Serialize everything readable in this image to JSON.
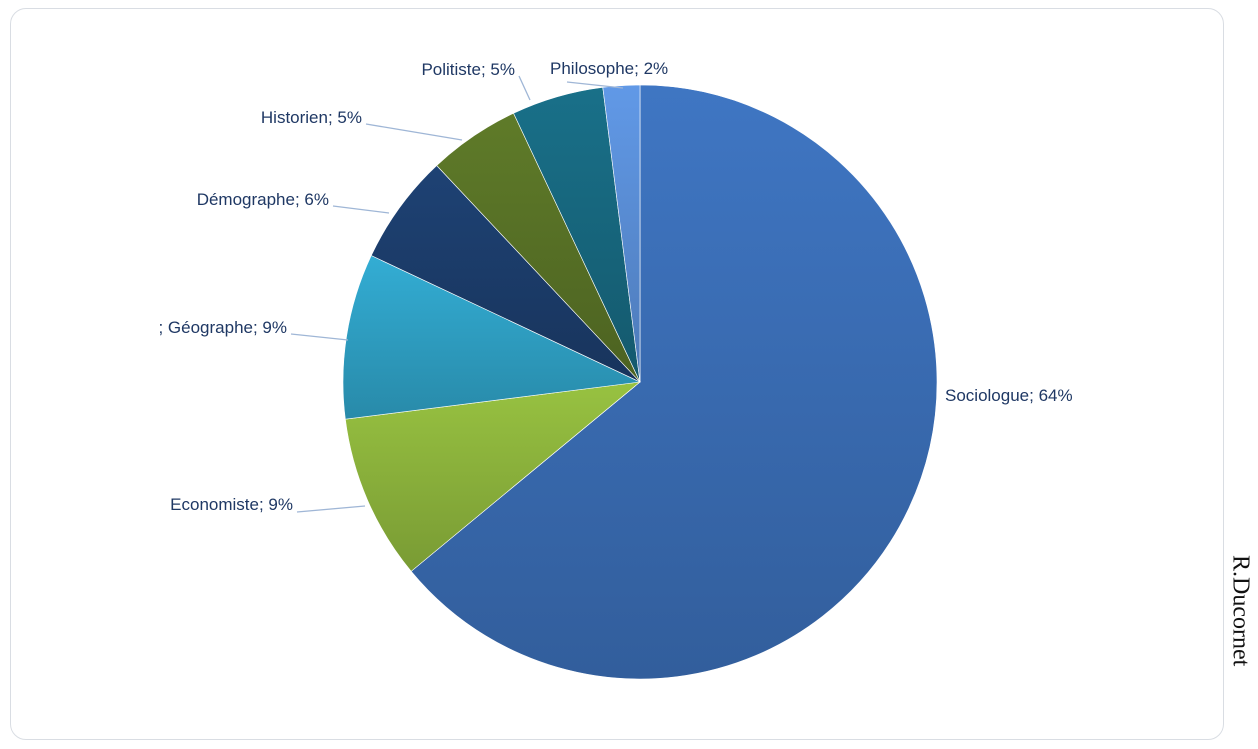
{
  "chart_data": {
    "type": "pie",
    "title": "",
    "slices": [
      {
        "name": "Sociologue",
        "value": 64,
        "label": "Sociologue; 64%",
        "color": "#3a6db5"
      },
      {
        "name": "Economiste",
        "value": 9,
        "label": "Economiste; 9%",
        "color": "#8db43c"
      },
      {
        "name": "Géographe",
        "value": 9,
        "label": "; Géographe; 9%",
        "color": "#2fa0c4"
      },
      {
        "name": "Démographe",
        "value": 6,
        "label": "Démographe; 6%",
        "color": "#1c3d6b"
      },
      {
        "name": "Historien",
        "value": 5,
        "label": "Historien; 5%",
        "color": "#587226"
      },
      {
        "name": "Politiste",
        "value": 5,
        "label": "Politiste; 5%",
        "color": "#17687f"
      },
      {
        "name": "Philosophe",
        "value": 2,
        "label": "Philosophe; 2%",
        "color": "#5a8ed6"
      }
    ],
    "start_angle": "top, clockwise",
    "legend": "none"
  },
  "signature": "R.Ducornet",
  "colors": {
    "label_text": "#1f3864",
    "leader_line": "#9fb6d6",
    "frame_border": "#d9dde3"
  }
}
